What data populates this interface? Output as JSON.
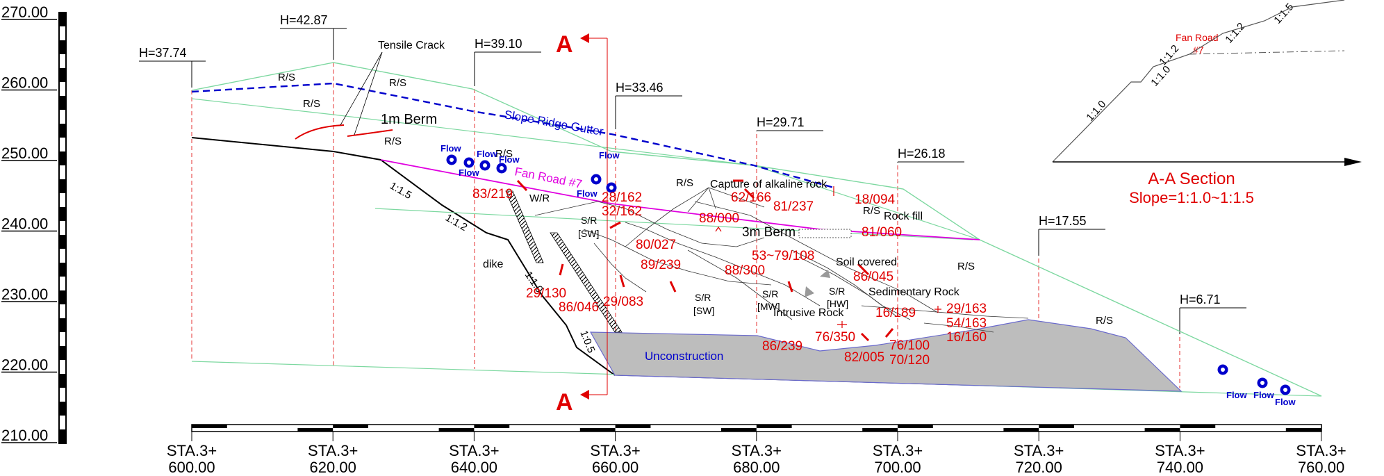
{
  "elevation_axis": {
    "labels": [
      "270.00",
      "260.00",
      "250.00",
      "240.00",
      "230.00",
      "220.00",
      "210.00"
    ]
  },
  "station_axis": {
    "labels": [
      [
        "STA.3+",
        "600.00"
      ],
      [
        "STA.3+",
        "620.00"
      ],
      [
        "STA.3+",
        "640.00"
      ],
      [
        "STA.3+",
        "660.00"
      ],
      [
        "STA.3+",
        "680.00"
      ],
      [
        "STA.3+",
        "700.00"
      ],
      [
        "STA.3+",
        "720.00"
      ],
      [
        "STA.3+",
        "740.00"
      ],
      [
        "STA.3+",
        "760.00"
      ]
    ]
  },
  "heights": [
    "H=37.74",
    "H=42.87",
    "H=39.10",
    "H=33.46",
    "H=29.71",
    "H=26.18",
    "H=17.55",
    "H=6.71"
  ],
  "section_marker": "A",
  "annotations": {
    "tensile_crack": "Tensile Crack",
    "slope_ridge_gutter": "Slope Ridge Gutter",
    "berm_1m": "1m Berm",
    "berm_3m": "3m Berm",
    "fan_road": "Fan Road #7",
    "capture_alkaline": "Capture of alkaline rock",
    "rock_fill": "Rock fill",
    "soil_covered": "Soil covered",
    "sedimentary_rock": "Sedimentary Rock",
    "intrusive_rock": "Intrusive Rock",
    "unconstruction": "Unconstruction",
    "dike": "dike",
    "wr": "W/R",
    "flow": "Flow",
    "rs": "R/S",
    "sr": "S/R",
    "sw": "[SW]",
    "mw": "[MW]",
    "hw": "[HW]"
  },
  "slope_ratios": [
    "1:1.5",
    "1:1.2",
    "1:1.0",
    "1:0.5"
  ],
  "joints": [
    "83/219",
    "28/162",
    "32/162",
    "62/166",
    "81/237",
    "88/000",
    "18/094",
    "81/060",
    "80/027",
    "89/239",
    "53~79/108",
    "88/300",
    "86/045",
    "29/130",
    "86/046",
    "29/083",
    "16/189",
    "29/163",
    "54/163",
    "16/160",
    "86/239",
    "76/350",
    "82/005",
    "76/100",
    "70/120"
  ],
  "inset": {
    "fan_road": "Fan Road",
    "fan_road_no": "#7",
    "ratios": [
      "1:1.0",
      "1:1.0",
      "1:1.2",
      "1:1.2",
      "1:1.5"
    ],
    "title": "A-A Section",
    "subtitle": "Slope=1:1.0~1:1.5"
  },
  "colors": {
    "red": "#e00000",
    "blue": "#0000cc",
    "magenta": "#e000e0",
    "green": "#7dd8a0",
    "grey": "#bdbdbd"
  }
}
